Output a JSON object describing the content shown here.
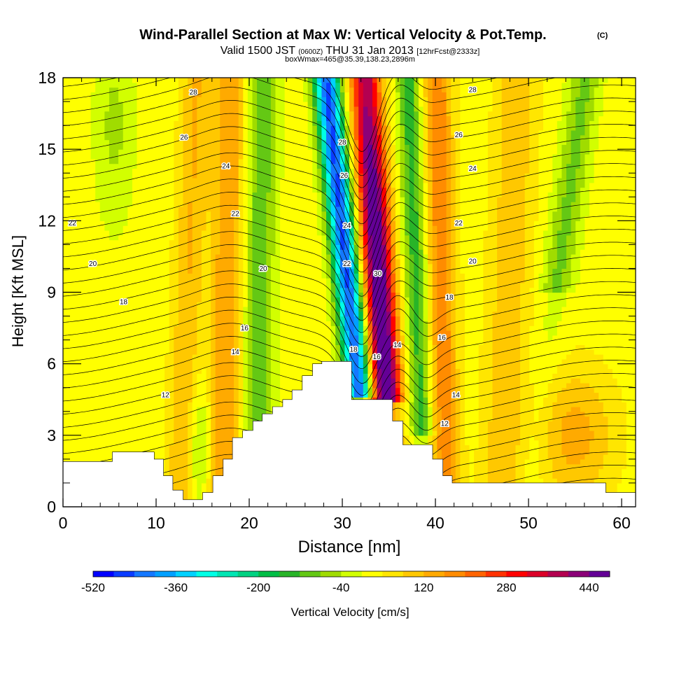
{
  "chart_data": {
    "type": "heatmap",
    "title": "Wind-Parallel Section at Max W: Vertical Velocity & Pot.Temp.",
    "title_mark": "(C)",
    "subtitle_parts": [
      "Valid 1500 JST",
      "(0600Z)",
      "THU 31 Jan 2013",
      "[12hrFcst@2333z]"
    ],
    "subtitle2": "boxWmax=465@35.39,138.23,2896m",
    "xlabel": "Distance [nm]",
    "ylabel": "Height [Kft MSL]",
    "xlim": [
      0,
      61.5
    ],
    "ylim": [
      0,
      18
    ],
    "x_ticks": [
      0,
      10,
      20,
      30,
      40,
      50,
      60
    ],
    "y_ticks": [
      0,
      3,
      6,
      9,
      12,
      15,
      18
    ],
    "colorbar": {
      "label": "Vertical Velocity [cm/s]",
      "tick_labels": [
        "-520",
        "-360",
        "-200",
        "-40",
        "120",
        "280",
        "440"
      ],
      "tick_values": [
        -520,
        -360,
        -200,
        -40,
        120,
        280,
        440
      ],
      "range": [
        -520,
        480
      ],
      "colors": [
        "#0000ff",
        "#0a3cff",
        "#1478ff",
        "#00a0ff",
        "#00d2ff",
        "#00ffe6",
        "#00e6b4",
        "#00d282",
        "#00be46",
        "#28b428",
        "#64c814",
        "#a0dc00",
        "#d2ff00",
        "#ffff00",
        "#ffe600",
        "#ffc800",
        "#ffaa00",
        "#ff8c00",
        "#ff6400",
        "#ff3200",
        "#ff0000",
        "#dc0028",
        "#b40050",
        "#8c0078",
        "#640096"
      ]
    },
    "terrain": [
      [
        0,
        1.9
      ],
      [
        5.3,
        1.9
      ],
      [
        5.3,
        2.3
      ],
      [
        9.8,
        2.3
      ],
      [
        9.8,
        2.0
      ],
      [
        10.8,
        2.0
      ],
      [
        10.8,
        1.3
      ],
      [
        11.8,
        1.3
      ],
      [
        11.8,
        0.7
      ],
      [
        12.9,
        0.7
      ],
      [
        12.9,
        0.3
      ],
      [
        15,
        0.3
      ],
      [
        15,
        0.6
      ],
      [
        16.1,
        0.6
      ],
      [
        16.1,
        1.3
      ],
      [
        17.2,
        1.3
      ],
      [
        17.2,
        2.0
      ],
      [
        18.2,
        2.0
      ],
      [
        18.2,
        2.9
      ],
      [
        19.3,
        2.9
      ],
      [
        19.3,
        3.2
      ],
      [
        20.4,
        3.2
      ],
      [
        20.4,
        3.6
      ],
      [
        21.4,
        3.6
      ],
      [
        21.4,
        3.9
      ],
      [
        22.5,
        3.9
      ],
      [
        22.5,
        4.2
      ],
      [
        23.6,
        4.2
      ],
      [
        23.6,
        4.5
      ],
      [
        24.6,
        4.5
      ],
      [
        24.6,
        4.9
      ],
      [
        25.7,
        4.9
      ],
      [
        25.7,
        5.5
      ],
      [
        26.8,
        5.5
      ],
      [
        26.8,
        6.0
      ],
      [
        27.8,
        6.0
      ],
      [
        27.8,
        6.1
      ],
      [
        31,
        6.1
      ],
      [
        31,
        4.5
      ],
      [
        35.4,
        4.5
      ],
      [
        35.4,
        3.6
      ],
      [
        36.5,
        3.6
      ],
      [
        36.5,
        2.6
      ],
      [
        39.7,
        2.6
      ],
      [
        39.7,
        2.0
      ],
      [
        40.8,
        2.0
      ],
      [
        40.8,
        1.3
      ],
      [
        41.8,
        1.3
      ],
      [
        41.8,
        1.0
      ],
      [
        58.3,
        1.0
      ],
      [
        58.3,
        0.6
      ],
      [
        61.5,
        0.6
      ]
    ],
    "theta_contours": [
      {
        "label": "12",
        "baseline": 4.5
      },
      {
        "label": "14",
        "baseline": 6.4
      },
      {
        "label": "16",
        "baseline": 7.8
      },
      {
        "label": "18",
        "baseline": 8.6
      },
      {
        "label": "20",
        "baseline": 10.2
      },
      {
        "label": "22",
        "baseline": 11.9
      },
      {
        "label": "24",
        "baseline": 14.2
      },
      {
        "label": "26",
        "baseline": 15.5
      },
      {
        "label": "28",
        "baseline": 17.5
      }
    ],
    "contour_labels": [
      {
        "text": "12",
        "x": 11,
        "y": 4.7
      },
      {
        "text": "14",
        "x": 18.5,
        "y": 6.5
      },
      {
        "text": "16",
        "x": 19.5,
        "y": 7.5
      },
      {
        "text": "18",
        "x": 6.5,
        "y": 8.6
      },
      {
        "text": "18",
        "x": 41.5,
        "y": 8.8
      },
      {
        "text": "18",
        "x": 31.2,
        "y": 6.6
      },
      {
        "text": "16",
        "x": 33.7,
        "y": 6.3
      },
      {
        "text": "14",
        "x": 35.9,
        "y": 6.8
      },
      {
        "text": "16",
        "x": 40.7,
        "y": 7.1
      },
      {
        "text": "14",
        "x": 42.2,
        "y": 4.7
      },
      {
        "text": "12",
        "x": 41,
        "y": 3.5
      },
      {
        "text": "20",
        "x": 3.2,
        "y": 10.2
      },
      {
        "text": "20",
        "x": 21.5,
        "y": 10.0
      },
      {
        "text": "20",
        "x": 44,
        "y": 10.3
      },
      {
        "text": "22",
        "x": 1,
        "y": 11.9
      },
      {
        "text": "22",
        "x": 18.5,
        "y": 12.3
      },
      {
        "text": "22",
        "x": 42.5,
        "y": 11.9
      },
      {
        "text": "22",
        "x": 30.5,
        "y": 10.2
      },
      {
        "text": "24",
        "x": 17.5,
        "y": 14.3
      },
      {
        "text": "24",
        "x": 44,
        "y": 14.2
      },
      {
        "text": "24",
        "x": 30.5,
        "y": 11.8
      },
      {
        "text": "26",
        "x": 13,
        "y": 15.5
      },
      {
        "text": "26",
        "x": 42.5,
        "y": 15.6
      },
      {
        "text": "26",
        "x": 30.2,
        "y": 13.9
      },
      {
        "text": "28",
        "x": 14,
        "y": 17.4
      },
      {
        "text": "28",
        "x": 44,
        "y": 17.5
      },
      {
        "text": "28",
        "x": 30.0,
        "y": 15.3
      },
      {
        "text": "30",
        "x": 33.8,
        "y": 9.8
      }
    ]
  }
}
